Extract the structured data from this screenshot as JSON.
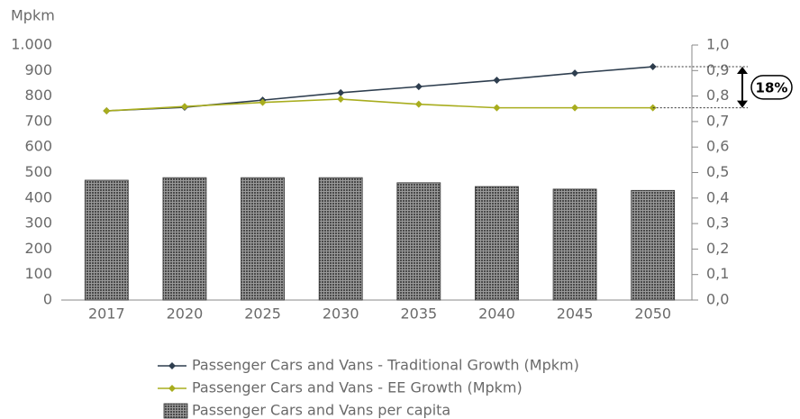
{
  "chart_data": {
    "type": "bar",
    "y_label": "Mpkm",
    "categories": [
      "2017",
      "2020",
      "2025",
      "2030",
      "2035",
      "2040",
      "2045",
      "2050"
    ],
    "ylim": [
      0,
      1000
    ],
    "yticks": [
      0,
      100,
      200,
      300,
      400,
      500,
      600,
      700,
      800,
      900,
      {
        "value": 1000,
        "label": "1.000"
      }
    ],
    "y2lim": [
      0,
      1
    ],
    "y2ticks": [
      {
        "value": 0,
        "label": "0,0"
      },
      {
        "value": 0.1,
        "label": "0,1"
      },
      {
        "value": 0.2,
        "label": "0,2"
      },
      {
        "value": 0.3,
        "label": "0,3"
      },
      {
        "value": 0.4,
        "label": "0,4"
      },
      {
        "value": 0.5,
        "label": "0,5"
      },
      {
        "value": 0.6,
        "label": "0,6"
      },
      {
        "value": 0.7,
        "label": "0,7"
      },
      {
        "value": 0.8,
        "label": "0,8"
      },
      {
        "value": 0.9,
        "label": "0,9"
      },
      {
        "value": 1,
        "label": "1,0"
      }
    ],
    "series": [
      {
        "name": "Passenger Cars and Vans - Traditional Growth (Mpkm)",
        "type": "line",
        "color": "#2e3e4f",
        "values": [
          742,
          756,
          784,
          813,
          837,
          862,
          890,
          915
        ]
      },
      {
        "name": "Passenger Cars and Vans - EE Growth (Mpkm)",
        "type": "line",
        "color": "#a8ad1e",
        "values": [
          742,
          759,
          775,
          788,
          768,
          754,
          754,
          754
        ]
      },
      {
        "name": "Passenger Cars and Vans per capita",
        "type": "bar",
        "axis": "y2",
        "color": "#4a4a4a",
        "values": [
          0.47,
          0.48,
          0.48,
          0.48,
          0.46,
          0.445,
          0.435,
          0.43
        ]
      }
    ],
    "annotation": "18%"
  }
}
